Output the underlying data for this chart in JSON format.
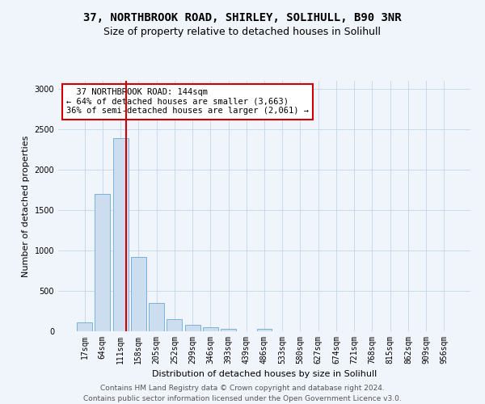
{
  "title_line1": "37, NORTHBROOK ROAD, SHIRLEY, SOLIHULL, B90 3NR",
  "title_line2": "Size of property relative to detached houses in Solihull",
  "xlabel": "Distribution of detached houses by size in Solihull",
  "ylabel": "Number of detached properties",
  "bar_color": "#ccddf0",
  "bar_edge_color": "#6aaad4",
  "categories": [
    "17sqm",
    "64sqm",
    "111sqm",
    "158sqm",
    "205sqm",
    "252sqm",
    "299sqm",
    "346sqm",
    "393sqm",
    "439sqm",
    "486sqm",
    "533sqm",
    "580sqm",
    "627sqm",
    "674sqm",
    "721sqm",
    "768sqm",
    "815sqm",
    "862sqm",
    "909sqm",
    "956sqm"
  ],
  "values": [
    115,
    1700,
    2390,
    920,
    355,
    155,
    80,
    55,
    35,
    0,
    35,
    0,
    0,
    0,
    0,
    0,
    0,
    0,
    0,
    0,
    0
  ],
  "property_line_x": 2.33,
  "annotation_text": "  37 NORTHBROOK ROAD: 144sqm\n← 64% of detached houses are smaller (3,663)\n36% of semi-detached houses are larger (2,061) →",
  "annotation_box_color": "#ffffff",
  "annotation_box_edge": "#cc0000",
  "vline_color": "#cc0000",
  "ylim": [
    0,
    3100
  ],
  "yticks": [
    0,
    500,
    1000,
    1500,
    2000,
    2500,
    3000
  ],
  "footer_line1": "Contains HM Land Registry data © Crown copyright and database right 2024.",
  "footer_line2": "Contains public sector information licensed under the Open Government Licence v3.0.",
  "bg_color": "#f0f4fb",
  "grid_color": "#c8d4e8",
  "title_fontsize": 10,
  "subtitle_fontsize": 9,
  "axis_label_fontsize": 8,
  "tick_fontsize": 7,
  "annotation_fontsize": 7.5,
  "footer_fontsize": 6.5
}
